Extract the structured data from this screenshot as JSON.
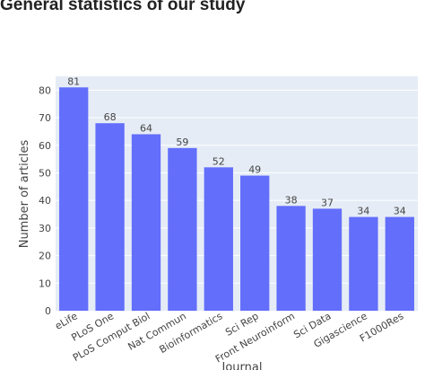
{
  "title": "General statistics of our study",
  "chart_data": {
    "type": "bar",
    "title": "General statistics of our study",
    "xlabel": "Journal",
    "ylabel": "Number of articles",
    "categories": [
      "eLife",
      "PLoS One",
      "PLoS Comput Biol",
      "Nat Commun",
      "Bioinformatics",
      "Sci Rep",
      "Front Neuroinform",
      "Sci Data",
      "Gigascience",
      "F1000Res"
    ],
    "values": [
      81,
      68,
      64,
      59,
      52,
      49,
      38,
      37,
      34,
      34
    ],
    "yticks": [
      0,
      10,
      20,
      30,
      40,
      50,
      60,
      70,
      80
    ],
    "ylim": [
      0,
      85
    ],
    "grid": true,
    "colors": {
      "bar": "#636efa",
      "plot_bg": "#e5ecf6",
      "grid": "#ffffff"
    }
  }
}
